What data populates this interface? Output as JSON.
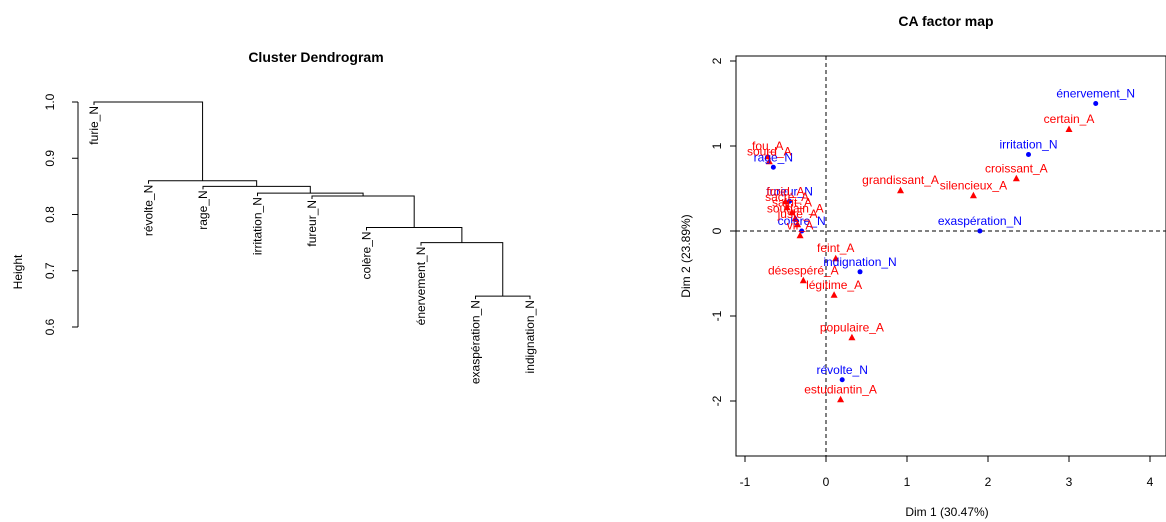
{
  "chart_data": [
    {
      "type": "dendrogram",
      "title": "Cluster Dendrogram",
      "ylabel": "Height",
      "ylim": [
        0.6,
        1.0
      ],
      "yticks": [
        0.6,
        0.7,
        0.8,
        0.9,
        1.0
      ],
      "ytick_labels": [
        "0.6",
        "0.7",
        "0.8",
        "0.9",
        "1.0"
      ],
      "leaves": [
        "furie_N",
        "révolte_N",
        "rage_N",
        "irritation_N",
        "fureur_N",
        "colère_N",
        "énervement_N",
        "exaspération_N",
        "indignation_N"
      ],
      "merges": [
        {
          "left": "exaspération_N",
          "right": "indignation_N",
          "height": 0.655
        },
        {
          "left": "énervement_N",
          "right": "m1",
          "height": 0.75
        },
        {
          "left": "colère_N",
          "right": "m2",
          "height": 0.777
        },
        {
          "left": "fureur_N",
          "right": "m3",
          "height": 0.833
        },
        {
          "left": "irritation_N",
          "right": "m4",
          "height": 0.838
        },
        {
          "left": "rage_N",
          "right": "m5",
          "height": 0.85
        },
        {
          "left": "révolte_N",
          "right": "m6",
          "height": 0.86
        },
        {
          "left": "furie_N",
          "right": "m7",
          "height": 1.0
        }
      ]
    },
    {
      "type": "scatter",
      "title": "CA factor map",
      "xlabel": "Dim 1 (30.47%)",
      "ylabel": "Dim 2 (23.89%)",
      "xlim": [
        -1,
        4
      ],
      "ylim": [
        -2,
        2
      ],
      "xticks": [
        -1,
        0,
        1,
        2,
        3,
        4
      ],
      "xtick_labels": [
        "-1",
        "0",
        "1",
        "2",
        "3",
        "4"
      ],
      "yticks": [
        -2,
        -1,
        0,
        1,
        2
      ],
      "ytick_labels": [
        "-2",
        "-1",
        "0",
        "1",
        "2"
      ],
      "reference_lines": {
        "x": 0,
        "y": 0,
        "style": "dashed"
      },
      "colors": {
        "rows": "#0000ff",
        "columns": "#ff0000"
      },
      "points": [
        {
          "label": "énervement_N",
          "x": 3.33,
          "y": 1.5,
          "group": "rows"
        },
        {
          "label": "irritation_N",
          "x": 2.5,
          "y": 0.9,
          "group": "rows"
        },
        {
          "label": "exaspération_N",
          "x": 1.9,
          "y": 0.0,
          "group": "rows"
        },
        {
          "label": "rage_N",
          "x": -0.65,
          "y": 0.75,
          "group": "rows"
        },
        {
          "label": "fureur_N",
          "x": -0.45,
          "y": 0.35,
          "group": "rows"
        },
        {
          "label": "colère_N",
          "x": -0.3,
          "y": 0.0,
          "group": "rows"
        },
        {
          "label": "indignation_N",
          "x": 0.42,
          "y": -0.48,
          "group": "rows"
        },
        {
          "label": "révolte_N",
          "x": 0.2,
          "y": -1.75,
          "group": "rows"
        },
        {
          "label": "certain_A",
          "x": 3.0,
          "y": 1.2,
          "group": "columns"
        },
        {
          "label": "croissant_A",
          "x": 2.35,
          "y": 0.62,
          "group": "columns"
        },
        {
          "label": "silencieux_A",
          "x": 1.82,
          "y": 0.42,
          "group": "columns"
        },
        {
          "label": "grandissant_A",
          "x": 0.92,
          "y": 0.48,
          "group": "columns"
        },
        {
          "label": "fou_A",
          "x": -0.72,
          "y": 0.88,
          "group": "columns"
        },
        {
          "label": "sourd_A",
          "x": -0.7,
          "y": 0.82,
          "group": "columns"
        },
        {
          "label": "froid_A",
          "x": -0.5,
          "y": 0.35,
          "group": "columns"
        },
        {
          "label": "sacré_A",
          "x": -0.48,
          "y": 0.28,
          "group": "columns"
        },
        {
          "label": "saint_A",
          "x": -0.42,
          "y": 0.22,
          "group": "columns"
        },
        {
          "label": "soudain_A",
          "x": -0.38,
          "y": 0.15,
          "group": "columns"
        },
        {
          "label": "juste_A",
          "x": -0.35,
          "y": 0.08,
          "group": "columns"
        },
        {
          "label": "vif_A",
          "x": -0.32,
          "y": -0.05,
          "group": "columns"
        },
        {
          "label": "feint_A",
          "x": 0.12,
          "y": -0.32,
          "group": "columns"
        },
        {
          "label": "désespéré_A",
          "x": -0.28,
          "y": -0.58,
          "group": "columns"
        },
        {
          "label": "légitime_A",
          "x": 0.1,
          "y": -0.75,
          "group": "columns"
        },
        {
          "label": "populaire_A",
          "x": 0.32,
          "y": -1.25,
          "group": "columns"
        },
        {
          "label": "estudiantin_A",
          "x": 0.18,
          "y": -1.98,
          "group": "columns"
        }
      ]
    }
  ]
}
